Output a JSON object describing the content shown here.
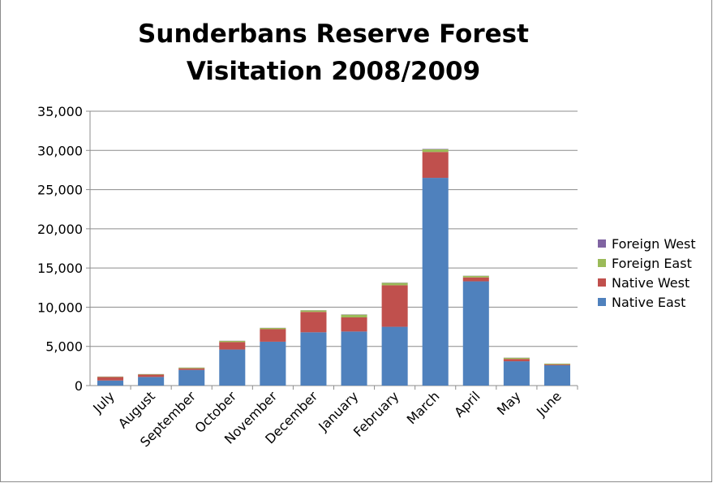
{
  "chart_data": {
    "type": "bar",
    "stacked": true,
    "title_lines": [
      "Sunderbans Reserve Forest",
      "Visitation 2008/2009"
    ],
    "categories": [
      "July",
      "August",
      "September",
      "October",
      "November",
      "December",
      "January",
      "February",
      "March",
      "April",
      "May",
      "June"
    ],
    "series": [
      {
        "name": "Native East",
        "color": "#4f81bd",
        "values": [
          650,
          1100,
          2000,
          4600,
          5600,
          6800,
          6900,
          7500,
          26500,
          13300,
          3100,
          2600
        ]
      },
      {
        "name": "Native West",
        "color": "#c0504d",
        "values": [
          450,
          300,
          200,
          950,
          1600,
          2600,
          1800,
          5300,
          3300,
          500,
          300,
          100
        ]
      },
      {
        "name": "Foreign East",
        "color": "#9bbb59",
        "values": [
          50,
          60,
          100,
          150,
          150,
          200,
          350,
          300,
          350,
          200,
          150,
          100
        ]
      },
      {
        "name": "Foreign West",
        "color": "#8064a2",
        "values": [
          10,
          10,
          10,
          20,
          20,
          20,
          30,
          30,
          50,
          20,
          20,
          10
        ]
      }
    ],
    "ylim": [
      0,
      35000
    ],
    "yticks": [
      0,
      5000,
      10000,
      15000,
      20000,
      25000,
      30000,
      35000
    ],
    "ytick_labels": [
      "0",
      "5,000",
      "10,000",
      "15,000",
      "20,000",
      "25,000",
      "30,000",
      "35,000"
    ],
    "grid": true,
    "legend_position": "right",
    "legend_order": [
      "Foreign West",
      "Foreign East",
      "Native West",
      "Native East"
    ]
  }
}
